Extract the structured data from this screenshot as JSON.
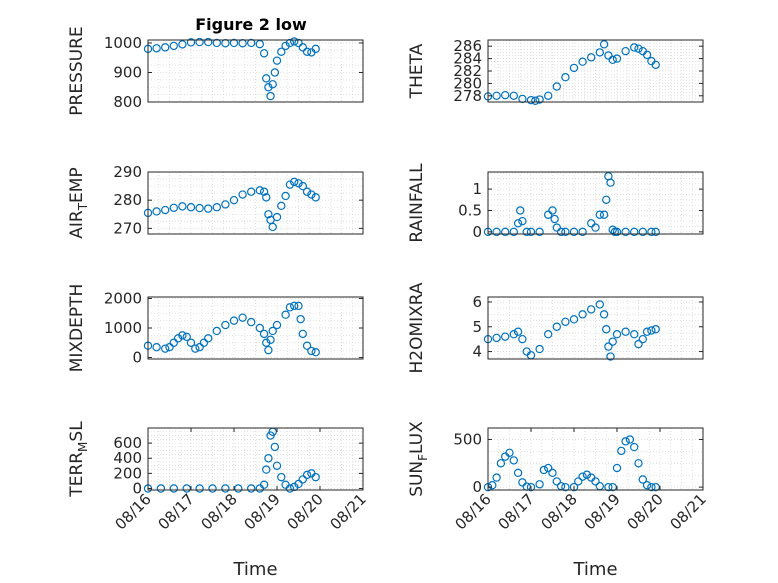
{
  "figure_title": "Figure 2 low",
  "colors": {
    "marker": "#0072BD",
    "axis": "#262626",
    "grid": "#d9d9d9"
  },
  "chart_data": [
    {
      "type": "scatter",
      "title": "Figure 2 low",
      "ylabel": "PRESSURE",
      "xlabel": "",
      "ylim": [
        800,
        1010
      ],
      "yticks": [
        800,
        900,
        1000
      ],
      "ytick_labels": [
        "800",
        "900",
        "1000"
      ],
      "xlim": [
        "08/16",
        "08/20"
      ],
      "xticks": [],
      "grid": true,
      "series": [
        {
          "x": [
            16.0,
            16.2,
            16.4,
            16.6,
            16.8,
            17.0,
            17.2,
            17.4,
            17.6,
            17.8,
            18.0,
            18.2,
            18.4,
            18.6,
            18.7,
            18.75,
            18.8,
            18.85,
            18.9,
            18.95,
            19.0,
            19.1,
            19.2,
            19.3,
            19.4,
            19.5,
            19.6,
            19.7,
            19.8,
            19.9
          ],
          "y": [
            980,
            982,
            985,
            990,
            995,
            1002,
            1003,
            1003,
            1000,
            999,
            1000,
            999,
            1000,
            996,
            965,
            880,
            850,
            820,
            860,
            900,
            940,
            970,
            990,
            1000,
            1005,
            1000,
            985,
            970,
            968,
            980
          ]
        }
      ]
    },
    {
      "type": "scatter",
      "title": "",
      "ylabel": "THETA",
      "xlabel": "",
      "ylim": [
        277,
        287
      ],
      "yticks": [
        278,
        280,
        282,
        284,
        286
      ],
      "ytick_labels": [
        "278",
        "280",
        "282",
        "284",
        "286"
      ],
      "xlim": [
        "08/16",
        "08/20"
      ],
      "xticks": [],
      "grid": true,
      "series": [
        {
          "x": [
            16.0,
            16.2,
            16.4,
            16.6,
            16.8,
            17.0,
            17.1,
            17.2,
            17.4,
            17.6,
            17.8,
            18.0,
            18.2,
            18.4,
            18.6,
            18.7,
            18.8,
            18.9,
            19.0,
            19.2,
            19.4,
            19.5,
            19.6,
            19.7,
            19.8,
            19.9
          ],
          "y": [
            277.9,
            278.0,
            278.1,
            278.0,
            277.5,
            277.3,
            277.2,
            277.4,
            278.0,
            279.5,
            281.0,
            282.5,
            283.5,
            284.2,
            285.0,
            286.3,
            284.5,
            283.8,
            284.0,
            285.2,
            285.8,
            285.6,
            285.2,
            284.6,
            283.6,
            283.0
          ]
        }
      ]
    },
    {
      "type": "scatter",
      "title": "",
      "ylabel": "AIR_TEMP",
      "xlabel": "",
      "ylim": [
        268,
        290
      ],
      "yticks": [
        270,
        280,
        290
      ],
      "ytick_labels": [
        "270",
        "280",
        "290"
      ],
      "xlim": [
        "08/16",
        "08/20"
      ],
      "xticks": [],
      "grid": true,
      "series": [
        {
          "x": [
            16.0,
            16.2,
            16.4,
            16.6,
            16.8,
            17.0,
            17.2,
            17.4,
            17.6,
            17.8,
            18.0,
            18.2,
            18.4,
            18.6,
            18.7,
            18.75,
            18.8,
            18.85,
            18.9,
            19.0,
            19.1,
            19.2,
            19.3,
            19.4,
            19.5,
            19.6,
            19.7,
            19.8,
            19.9
          ],
          "y": [
            275.5,
            276.0,
            276.5,
            277.3,
            277.8,
            277.5,
            277.2,
            277.0,
            277.5,
            278.5,
            280.0,
            282.0,
            283.0,
            283.5,
            283.0,
            281.0,
            275.0,
            273.0,
            270.5,
            274.0,
            278.0,
            281.5,
            285.5,
            286.5,
            286.0,
            285.0,
            283.0,
            282.0,
            281.0
          ]
        }
      ]
    },
    {
      "type": "scatter",
      "title": "",
      "ylabel": "RAINFALL",
      "xlabel": "",
      "ylim": [
        -0.05,
        1.4
      ],
      "yticks": [
        0,
        0.5,
        1
      ],
      "ytick_labels": [
        "0",
        "0.5",
        "1"
      ],
      "xlim": [
        "08/16",
        "08/20"
      ],
      "xticks": [],
      "grid": true,
      "series": [
        {
          "x": [
            16.0,
            16.2,
            16.4,
            16.6,
            16.7,
            16.75,
            16.8,
            16.9,
            17.0,
            17.2,
            17.4,
            17.5,
            17.55,
            17.6,
            17.7,
            17.8,
            18.0,
            18.2,
            18.4,
            18.5,
            18.6,
            18.7,
            18.75,
            18.8,
            18.85,
            18.9,
            18.95,
            19.0,
            19.2,
            19.4,
            19.6,
            19.8,
            19.9
          ],
          "y": [
            0,
            0,
            0,
            0,
            0.2,
            0.5,
            0.25,
            0,
            0,
            0,
            0.4,
            0.5,
            0.3,
            0.1,
            0,
            0,
            0,
            0,
            0.2,
            0.1,
            0.4,
            0.4,
            0.75,
            1.3,
            1.15,
            0.05,
            0,
            0,
            0,
            0,
            0,
            0,
            0
          ]
        }
      ]
    },
    {
      "type": "scatter",
      "title": "",
      "ylabel": "MIXDEPTH",
      "xlabel": "",
      "ylim": [
        -50,
        2050
      ],
      "yticks": [
        0,
        1000,
        2000
      ],
      "ytick_labels": [
        "0",
        "1000",
        "2000"
      ],
      "xlim": [
        "08/16",
        "08/20"
      ],
      "xticks": [],
      "grid": true,
      "series": [
        {
          "x": [
            16.0,
            16.2,
            16.4,
            16.5,
            16.6,
            16.7,
            16.8,
            16.9,
            17.0,
            17.1,
            17.2,
            17.3,
            17.4,
            17.6,
            17.8,
            18.0,
            18.2,
            18.4,
            18.6,
            18.7,
            18.75,
            18.8,
            18.85,
            18.9,
            19.0,
            19.2,
            19.3,
            19.4,
            19.5,
            19.55,
            19.6,
            19.7,
            19.8,
            19.9
          ],
          "y": [
            400,
            350,
            300,
            350,
            500,
            650,
            750,
            700,
            500,
            300,
            350,
            500,
            650,
            900,
            1100,
            1250,
            1350,
            1200,
            1000,
            800,
            500,
            250,
            600,
            900,
            1100,
            1450,
            1700,
            1750,
            1750,
            1300,
            800,
            400,
            220,
            180
          ]
        }
      ]
    },
    {
      "type": "scatter",
      "title": "",
      "ylabel": "H2OMIXRA",
      "xlabel": "",
      "ylim": [
        3.7,
        6.2
      ],
      "yticks": [
        4,
        5,
        6
      ],
      "ytick_labels": [
        "4",
        "5",
        "6"
      ],
      "xlim": [
        "08/16",
        "08/20"
      ],
      "xticks": [],
      "grid": true,
      "series": [
        {
          "x": [
            16.0,
            16.2,
            16.4,
            16.6,
            16.7,
            16.8,
            16.9,
            17.0,
            17.2,
            17.4,
            17.6,
            17.8,
            18.0,
            18.2,
            18.4,
            18.6,
            18.7,
            18.75,
            18.8,
            18.85,
            18.9,
            19.0,
            19.2,
            19.4,
            19.5,
            19.6,
            19.7,
            19.8,
            19.9
          ],
          "y": [
            4.5,
            4.55,
            4.6,
            4.7,
            4.8,
            4.5,
            4.0,
            3.85,
            4.1,
            4.7,
            5.0,
            5.2,
            5.3,
            5.5,
            5.7,
            5.9,
            5.5,
            4.9,
            4.2,
            3.8,
            4.4,
            4.7,
            4.8,
            4.7,
            4.3,
            4.5,
            4.8,
            4.85,
            4.9
          ]
        }
      ]
    },
    {
      "type": "scatter",
      "title": "",
      "ylabel": "TERR_MSL",
      "xlabel": "Time",
      "ylim": [
        -20,
        800
      ],
      "yticks": [
        0,
        200,
        400,
        600
      ],
      "ytick_labels": [
        "0",
        "200",
        "400",
        "600"
      ],
      "xlim": [
        "08/16",
        "08/21"
      ],
      "xticks": [
        16,
        17,
        18,
        19,
        20,
        21
      ],
      "xtick_labels": [
        "08/16",
        "08/17",
        "08/18",
        "08/19",
        "08/20",
        "08/21"
      ],
      "grid": true,
      "series": [
        {
          "x": [
            16.0,
            16.3,
            16.6,
            16.9,
            17.2,
            17.5,
            17.8,
            18.1,
            18.4,
            18.6,
            18.7,
            18.75,
            18.8,
            18.85,
            18.9,
            18.95,
            19.0,
            19.1,
            19.2,
            19.3,
            19.4,
            19.5,
            19.6,
            19.7,
            19.8,
            19.9
          ],
          "y": [
            0,
            0,
            0,
            0,
            0,
            0,
            0,
            0,
            0,
            0,
            50,
            250,
            400,
            700,
            750,
            550,
            300,
            150,
            50,
            0,
            20,
            60,
            120,
            180,
            200,
            150
          ]
        }
      ]
    },
    {
      "type": "scatter",
      "title": "",
      "ylabel": "SUN_FLUX",
      "xlabel": "Time",
      "ylim": [
        -30,
        620
      ],
      "yticks": [
        0,
        500
      ],
      "ytick_labels": [
        "0",
        "500"
      ],
      "xlim": [
        "08/16",
        "08/21"
      ],
      "xticks": [
        16,
        17,
        18,
        19,
        20,
        21
      ],
      "xtick_labels": [
        "08/16",
        "08/17",
        "08/18",
        "08/19",
        "08/20",
        "08/21"
      ],
      "grid": true,
      "series": [
        {
          "x": [
            16.0,
            16.1,
            16.2,
            16.3,
            16.4,
            16.5,
            16.6,
            16.7,
            16.8,
            16.9,
            17.0,
            17.2,
            17.3,
            17.4,
            17.5,
            17.6,
            17.7,
            17.8,
            18.0,
            18.1,
            18.2,
            18.3,
            18.4,
            18.5,
            18.6,
            18.8,
            18.9,
            19.0,
            19.1,
            19.2,
            19.3,
            19.4,
            19.5,
            19.6,
            19.7,
            19.8,
            19.9
          ],
          "y": [
            0,
            20,
            100,
            250,
            320,
            360,
            280,
            150,
            50,
            5,
            0,
            30,
            180,
            200,
            150,
            60,
            10,
            0,
            0,
            60,
            110,
            130,
            100,
            60,
            10,
            0,
            0,
            200,
            380,
            480,
            500,
            420,
            250,
            80,
            20,
            0,
            0
          ]
        }
      ]
    }
  ]
}
